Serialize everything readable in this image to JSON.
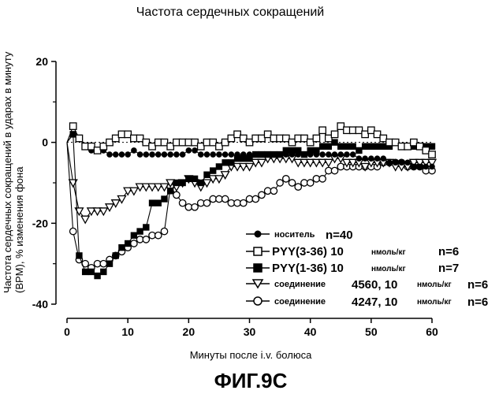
{
  "figure_label": "ФИГ.9C",
  "chart_data": {
    "type": "line",
    "title": "Частота сердечных сокращений",
    "xlabel": "Минуты после i.v. болюса",
    "ylabel_line1": "Частота сердечных сокращений в ударах в минуту",
    "ylabel_line2": "(BPM), % изменения фона",
    "xlim": [
      0,
      60
    ],
    "ylim": [
      -40,
      20
    ],
    "xticks": [
      0,
      10,
      20,
      30,
      40,
      50,
      60
    ],
    "yticks": [
      20,
      0,
      -20,
      -40
    ],
    "xtick_labels": [
      "0",
      "10",
      "20",
      "30",
      "40",
      "50",
      "60"
    ],
    "ytick_labels": [
      "20",
      "0",
      "-20",
      "-40"
    ],
    "grid": false,
    "legend_position": "bottom-right",
    "series": [
      {
        "name": "носитель",
        "n_label": "n=40",
        "marker": "circle-filled",
        "x": [
          1,
          2,
          3,
          4,
          5,
          6,
          7,
          8,
          9,
          10,
          11,
          12,
          13,
          14,
          15,
          16,
          17,
          18,
          19,
          20,
          21,
          22,
          23,
          24,
          25,
          26,
          27,
          28,
          29,
          30,
          31,
          32,
          33,
          34,
          35,
          36,
          37,
          38,
          39,
          40,
          41,
          42,
          43,
          44,
          45,
          46,
          47,
          48,
          49,
          50,
          51,
          52,
          53,
          54,
          55,
          56,
          57,
          58,
          59,
          60
        ],
        "y": [
          2,
          1,
          -1,
          -2,
          -2,
          -2,
          -3,
          -3,
          -3,
          -3,
          -2,
          -3,
          -3,
          -3,
          -3,
          -3,
          -3,
          -3,
          -3,
          -2,
          -2,
          -3,
          -3,
          -3,
          -3,
          -3,
          -3,
          -3,
          -3,
          -3,
          -3,
          -3,
          -3,
          -3,
          -3,
          -3,
          -3,
          -3,
          -3,
          -3,
          -3,
          -3,
          -3,
          -3,
          -3,
          -3,
          -3,
          -4,
          -4,
          -4,
          -4,
          -4,
          -5,
          -5,
          -5,
          -5,
          -6,
          -6,
          -6,
          -6
        ]
      },
      {
        "name": "PYY(3-36) 10",
        "unit_label": "нмоль/кг",
        "n_label": "n=6",
        "marker": "square-open",
        "x": [
          1,
          2,
          3,
          4,
          5,
          6,
          7,
          8,
          9,
          10,
          11,
          12,
          13,
          14,
          15,
          16,
          17,
          18,
          19,
          20,
          21,
          22,
          23,
          24,
          25,
          26,
          27,
          28,
          29,
          30,
          31,
          32,
          33,
          34,
          35,
          36,
          37,
          38,
          39,
          40,
          41,
          42,
          43,
          44,
          45,
          46,
          47,
          48,
          49,
          50,
          51,
          52,
          53,
          54,
          55,
          56,
          57,
          58,
          59,
          60
        ],
        "y": [
          4,
          1,
          -1,
          -1,
          -2,
          -1,
          0,
          1,
          2,
          2,
          1,
          1,
          0,
          -1,
          0,
          0,
          -1,
          0,
          0,
          0,
          0,
          -1,
          0,
          0,
          -1,
          0,
          1,
          2,
          1,
          0,
          1,
          1,
          2,
          1,
          1,
          1,
          0,
          1,
          1,
          0,
          1,
          3,
          1,
          2,
          4,
          3,
          3,
          3,
          2,
          3,
          2,
          1,
          0,
          0,
          -1,
          -1,
          0,
          -1,
          -2,
          -3
        ]
      },
      {
        "name": "PYY(1-36) 10",
        "unit_label": "нмоль/кг",
        "n_label": "n=7",
        "marker": "square-filled",
        "x": [
          1,
          2,
          3,
          4,
          5,
          6,
          7,
          8,
          9,
          10,
          11,
          12,
          13,
          14,
          15,
          16,
          17,
          18,
          19,
          20,
          21,
          22,
          23,
          24,
          25,
          26,
          27,
          28,
          29,
          30,
          31,
          32,
          33,
          34,
          35,
          36,
          37,
          38,
          39,
          40,
          41,
          42,
          43,
          44,
          45,
          46,
          47,
          48,
          49,
          50,
          51,
          52,
          53,
          54,
          55,
          56,
          57,
          58,
          59,
          60
        ],
        "y": [
          2,
          -28,
          -32,
          -32,
          -33,
          -32,
          -30,
          -28,
          -26,
          -25,
          -23,
          -22,
          -21,
          -15,
          -15,
          -14,
          -12,
          -10,
          -10,
          -9,
          -9,
          -10,
          -8,
          -7,
          -6,
          -5,
          -5,
          -4,
          -4,
          -4,
          -3,
          -3,
          -3,
          -3,
          -3,
          -2,
          -2,
          -2,
          -3,
          -2,
          -2,
          -1,
          -1,
          0,
          -1,
          -1,
          -1,
          -2,
          -1,
          -1,
          -1,
          -1,
          -1,
          0,
          -1,
          -1,
          -1,
          -1,
          -1,
          -1
        ]
      },
      {
        "name": "соединение",
        "id_label": "4560, 10",
        "unit_label": "нмоль/кг",
        "n_label": "n=6",
        "marker": "triangle-down-open",
        "x": [
          1,
          2,
          3,
          4,
          5,
          6,
          7,
          8,
          9,
          10,
          11,
          12,
          13,
          14,
          15,
          16,
          17,
          18,
          19,
          20,
          21,
          22,
          23,
          24,
          25,
          26,
          27,
          28,
          29,
          30,
          31,
          32,
          33,
          34,
          35,
          36,
          37,
          38,
          39,
          40,
          41,
          42,
          43,
          44,
          45,
          46,
          47,
          48,
          49,
          50,
          51,
          52,
          53,
          54,
          55,
          56,
          57,
          58,
          59,
          60
        ],
        "y": [
          -10,
          -17,
          -19,
          -17,
          -17,
          -17,
          -16,
          -15,
          -14,
          -12,
          -12,
          -11,
          -11,
          -11,
          -11,
          -11,
          -10,
          -11,
          -10,
          -9,
          -10,
          -11,
          -10,
          -9,
          -9,
          -8,
          -6,
          -6,
          -6,
          -6,
          -5,
          -5,
          -4,
          -4,
          -4,
          -4,
          -4,
          -5,
          -5,
          -5,
          -5,
          -5,
          -5,
          -4,
          -4,
          -5,
          -5,
          -5,
          -6,
          -5,
          -5,
          -5,
          -5,
          -6,
          -6,
          -6,
          -5,
          -5,
          -5,
          -5
        ]
      },
      {
        "name": "соединение",
        "id_label": "4247, 10",
        "unit_label": "нмоль/кг",
        "n_label": "n=6",
        "marker": "circle-open",
        "x": [
          1,
          2,
          3,
          4,
          5,
          6,
          7,
          8,
          9,
          10,
          11,
          12,
          13,
          14,
          15,
          16,
          17,
          18,
          19,
          20,
          21,
          22,
          23,
          24,
          25,
          26,
          27,
          28,
          29,
          30,
          31,
          32,
          33,
          34,
          35,
          36,
          37,
          38,
          39,
          40,
          41,
          42,
          43,
          44,
          45,
          46,
          47,
          48,
          49,
          50,
          51,
          52,
          53,
          54,
          55,
          56,
          57,
          58,
          59,
          60
        ],
        "y": [
          -22,
          -29,
          -30,
          -31,
          -30,
          -30,
          -29,
          -28,
          -27,
          -26,
          -25,
          -24,
          -24,
          -23,
          -23,
          -22,
          -11,
          -13,
          -15,
          -16,
          -16,
          -15,
          -15,
          -14,
          -14,
          -14,
          -15,
          -15,
          -15,
          -14,
          -14,
          -13,
          -12,
          -12,
          -10,
          -9,
          -10,
          -11,
          -10,
          -10,
          -9,
          -9,
          -7,
          -7,
          -6,
          -6,
          -6,
          -6,
          -6,
          -6,
          -6,
          -5,
          -5,
          -5,
          -5,
          -6,
          -6,
          -6,
          -7,
          -7
        ]
      }
    ]
  }
}
